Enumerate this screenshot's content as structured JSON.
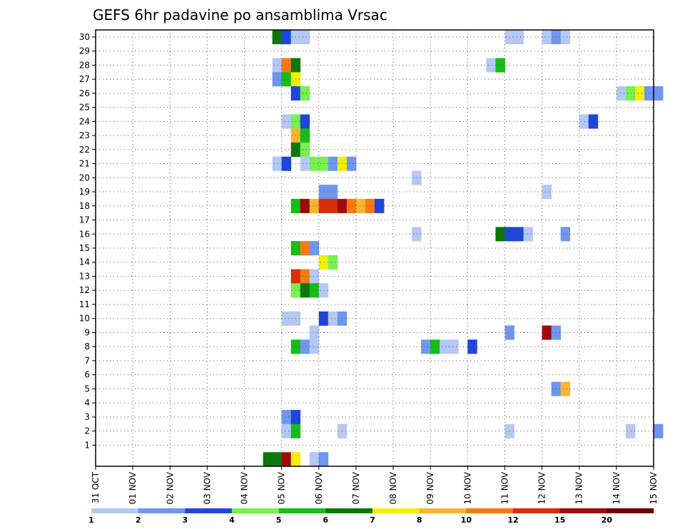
{
  "chart_data": {
    "type": "heatmap",
    "title": "GEFS 6hr padavine po ansamblima Vrsac",
    "x_tick_labels": [
      "31 OCT",
      "01 NOV",
      "02 NOV",
      "03 NOV",
      "04 NOV",
      "05 NOV",
      "06 NOV",
      "07 NOV",
      "08 NOV",
      "09 NOV",
      "10 NOV",
      "11 NOV",
      "12 NOV",
      "13 NOV",
      "14 NOV",
      "15 NOV"
    ],
    "y_tick_labels": [
      "1",
      "2",
      "3",
      "4",
      "5",
      "6",
      "7",
      "8",
      "9",
      "10",
      "11",
      "12",
      "13",
      "14",
      "15",
      "16",
      "17",
      "18",
      "19",
      "20",
      "21",
      "22",
      "23",
      "24",
      "25",
      "26",
      "27",
      "28",
      "29",
      "30"
    ],
    "x_unit": "6-hour step index since 31 OCT 00Z",
    "y_unit": "ensemble member (0 = control)",
    "grid": true,
    "colorbar": {
      "labels": [
        "1",
        "2",
        "3",
        "4",
        "5",
        "6",
        "7",
        "8",
        "10",
        "12",
        "15",
        "20"
      ],
      "colors": [
        "#b4c8f5",
        "#6e96f0",
        "#1e46dc",
        "#78f050",
        "#14be14",
        "#0a780a",
        "#f0f000",
        "#fab432",
        "#fa7814",
        "#dc2d0a",
        "#a00a0a",
        "#6e0000"
      ]
    },
    "cells": [
      [
        30,
        19,
        5
      ],
      [
        30,
        20,
        2
      ],
      [
        30,
        21,
        0
      ],
      [
        30,
        22,
        0
      ],
      [
        30,
        44,
        0
      ],
      [
        30,
        45,
        0
      ],
      [
        30,
        48,
        0
      ],
      [
        30,
        49,
        1
      ],
      [
        30,
        50,
        0
      ],
      [
        28,
        19,
        0
      ],
      [
        28,
        20,
        8
      ],
      [
        28,
        21,
        5
      ],
      [
        28,
        42,
        0
      ],
      [
        28,
        43,
        4
      ],
      [
        27,
        19,
        1
      ],
      [
        27,
        20,
        4
      ],
      [
        27,
        21,
        6
      ],
      [
        26,
        21,
        2
      ],
      [
        26,
        22,
        3
      ],
      [
        26,
        56,
        0
      ],
      [
        26,
        57,
        3
      ],
      [
        26,
        58,
        6
      ],
      [
        26,
        59,
        1
      ],
      [
        26,
        60,
        1
      ],
      [
        24,
        20,
        0
      ],
      [
        24,
        21,
        3
      ],
      [
        24,
        22,
        2
      ],
      [
        24,
        52,
        0
      ],
      [
        24,
        53,
        2
      ],
      [
        23,
        21,
        7
      ],
      [
        23,
        22,
        4
      ],
      [
        22,
        21,
        5
      ],
      [
        22,
        22,
        3
      ],
      [
        21,
        19,
        0
      ],
      [
        21,
        20,
        2
      ],
      [
        21,
        22,
        0
      ],
      [
        21,
        23,
        3
      ],
      [
        21,
        24,
        3
      ],
      [
        21,
        25,
        1
      ],
      [
        21,
        26,
        6
      ],
      [
        21,
        27,
        1
      ],
      [
        20,
        34,
        0
      ],
      [
        19,
        24,
        1
      ],
      [
        19,
        25,
        1
      ],
      [
        19,
        48,
        0
      ],
      [
        18,
        21,
        4
      ],
      [
        18,
        22,
        10
      ],
      [
        18,
        23,
        7
      ],
      [
        18,
        24,
        9
      ],
      [
        18,
        25,
        9
      ],
      [
        18,
        26,
        10
      ],
      [
        18,
        27,
        8
      ],
      [
        18,
        28,
        7
      ],
      [
        18,
        29,
        8
      ],
      [
        18,
        30,
        2
      ],
      [
        16,
        34,
        0
      ],
      [
        16,
        43,
        5
      ],
      [
        16,
        44,
        2
      ],
      [
        16,
        45,
        2
      ],
      [
        16,
        46,
        0
      ],
      [
        16,
        50,
        1
      ],
      [
        15,
        21,
        4
      ],
      [
        15,
        22,
        8
      ],
      [
        15,
        23,
        1
      ],
      [
        14,
        24,
        6
      ],
      [
        14,
        25,
        3
      ],
      [
        13,
        21,
        9
      ],
      [
        13,
        22,
        8
      ],
      [
        13,
        23,
        0
      ],
      [
        12,
        21,
        3
      ],
      [
        12,
        22,
        5
      ],
      [
        12,
        23,
        4
      ],
      [
        12,
        24,
        0
      ],
      [
        10,
        20,
        0
      ],
      [
        10,
        21,
        0
      ],
      [
        10,
        24,
        2
      ],
      [
        10,
        25,
        0
      ],
      [
        10,
        26,
        1
      ],
      [
        9,
        23,
        0
      ],
      [
        9,
        44,
        1
      ],
      [
        9,
        48,
        10
      ],
      [
        9,
        49,
        1
      ],
      [
        8,
        21,
        4
      ],
      [
        8,
        22,
        1
      ],
      [
        8,
        23,
        0
      ],
      [
        8,
        35,
        1
      ],
      [
        8,
        36,
        4
      ],
      [
        8,
        37,
        0
      ],
      [
        8,
        38,
        0
      ],
      [
        8,
        40,
        2
      ],
      [
        5,
        49,
        1
      ],
      [
        5,
        50,
        7
      ],
      [
        3,
        20,
        1
      ],
      [
        3,
        21,
        2
      ],
      [
        2,
        20,
        0
      ],
      [
        2,
        21,
        4
      ],
      [
        2,
        26,
        0
      ],
      [
        2,
        44,
        0
      ],
      [
        2,
        57,
        0
      ],
      [
        2,
        60,
        1
      ],
      [
        0,
        18,
        5
      ],
      [
        0,
        19,
        5
      ],
      [
        0,
        20,
        10
      ],
      [
        0,
        21,
        6
      ],
      [
        0,
        23,
        0
      ],
      [
        0,
        24,
        1
      ]
    ]
  }
}
